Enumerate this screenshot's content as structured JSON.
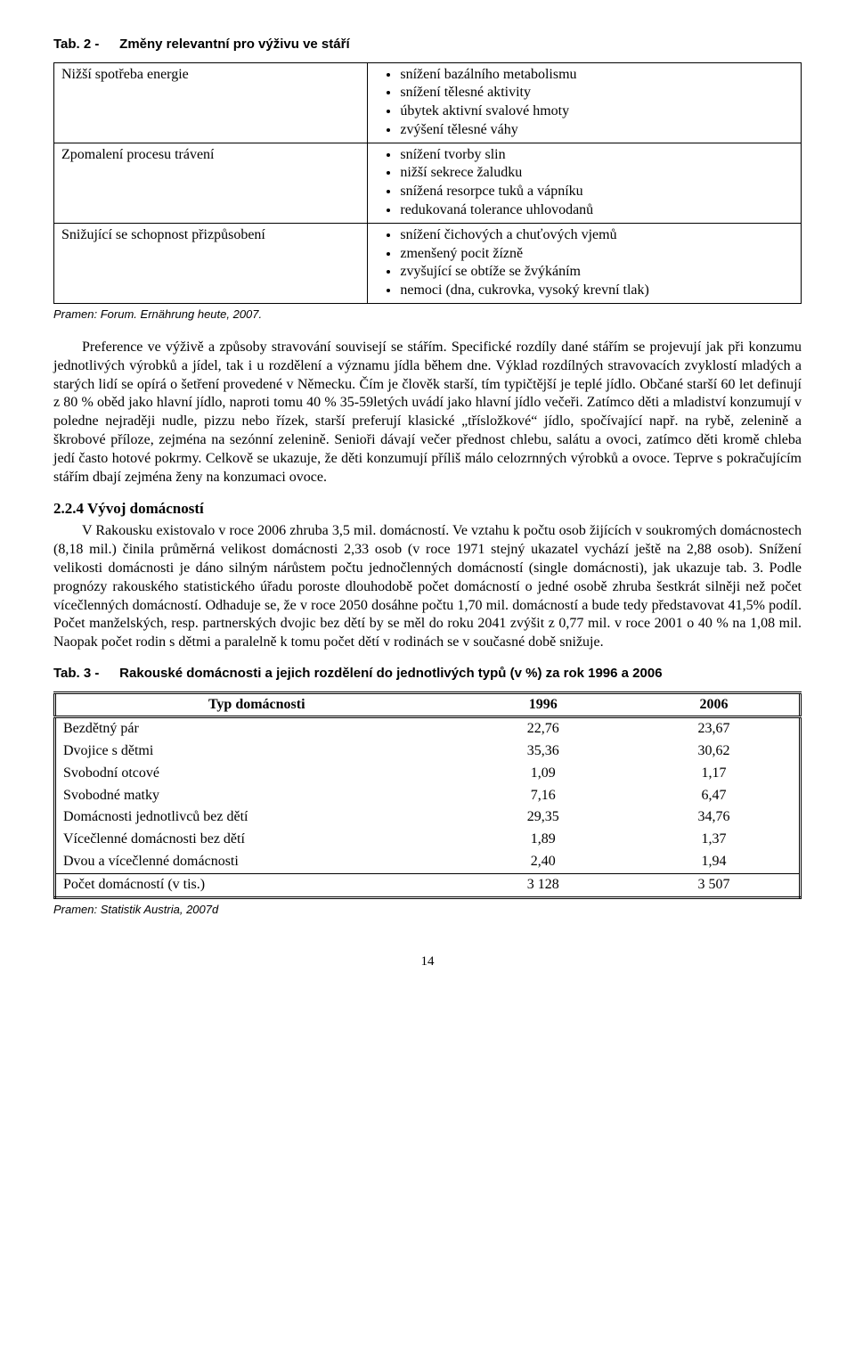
{
  "tab2": {
    "title_label": "Tab. 2 -",
    "title_text": "Změny relevantní pro výživu ve stáří",
    "rows": [
      {
        "left": "Nižší spotřeba energie",
        "items": [
          "snížení bazálního metabolismu",
          "snížení tělesné aktivity",
          "úbytek aktivní svalové hmoty",
          "zvýšení tělesné váhy"
        ]
      },
      {
        "left": "Zpomalení procesu trávení",
        "items": [
          "snížení tvorby slin",
          "nižší sekrece žaludku",
          "snížená resorpce tuků a vápníku",
          "redukovaná tolerance uhlovodanů"
        ]
      },
      {
        "left": "Snižující se schopnost přizpůsobení",
        "items": [
          "snížení čichových a chuťových vjemů",
          "zmenšený pocit žízně",
          "zvyšující se obtíže se žvýkáním",
          "nemoci (dna, cukrovka, vysoký krevní tlak)"
        ]
      }
    ],
    "source": "Pramen: Forum. Ernährung heute, 2007."
  },
  "para1": "Preference ve výživě a způsoby stravování souvisejí se stářím. Specifické rozdíly dané stářím se projevují jak při konzumu jednotlivých výrobků a jídel, tak i u rozdělení a významu jídla během dne. Výklad rozdílných stravovacích zvyklostí mladých a starých lidí se opírá o šetření provedené v Německu. Čím je člověk starší, tím typičtější je teplé jídlo. Občané starší 60 let definují z 80 % oběd jako hlavní jídlo, naproti tomu 40 % 35-59letých uvádí jako hlavní jídlo večeři. Zatímco děti a mladiství konzumují v poledne nejraději nudle, pizzu nebo řízek, starší preferují klasické „třísložkové“ jídlo, spočívající např. na rybě, zelenině a škrobové příloze, zejména na sezónní zelenině. Senioři dávají večer přednost chlebu, salátu a ovoci, zatímco děti kromě chleba jedí často hotové pokrmy. Celkově se ukazuje, že děti konzumují příliš málo celozrnných výrobků a ovoce. Teprve s pokračujícím stářím dbají zejména ženy na konzumaci ovoce.",
  "section": {
    "num": "2.2.4",
    "title": "Vývoj domácností"
  },
  "para2": "V Rakousku existovalo v roce 2006 zhruba 3,5 mil. domácností. Ve vztahu k počtu osob žijících v soukromých domácnostech (8,18 mil.) činila průměrná velikost domácnosti 2,33 osob (v roce 1971 stejný ukazatel vychází ještě na 2,88 osob). Snížení velikosti domácnosti je dáno silným nárůstem počtu jednočlenných domácností (single domácnosti), jak ukazuje tab. 3. Podle prognózy rakouského statistického úřadu poroste dlouhodobě počet domácností o jedné osobě zhruba šestkrát silněji než počet vícečlenných domácností. Odhaduje se, že v roce 2050 dosáhne počtu 1,70 mil. domácností a bude tedy představovat 41,5% podíl. Počet manželských, resp. partnerských dvojic bez dětí by se měl do roku 2041 zvýšit z 0,77 mil. v roce 2001 o 40 % na 1,08 mil. Naopak počet rodin s dětmi a paralelně k tomu počet dětí v rodinách se v současné době snižuje.",
  "tab3": {
    "title_label": "Tab. 3 -",
    "title_text": "Rakouské domácnosti a jejich rozdělení do jednotlivých typů (v %) za rok 1996 a 2006",
    "head": {
      "c0": "Typ domácnosti",
      "c1": "1996",
      "c2": "2006"
    },
    "rows": [
      {
        "label": "Bezdětný pár",
        "c1": "22,76",
        "c2": "23,67"
      },
      {
        "label": "Dvojice s dětmi",
        "c1": "35,36",
        "c2": "30,62"
      },
      {
        "label": "Svobodní otcové",
        "c1": "1,09",
        "c2": "1,17"
      },
      {
        "label": "Svobodné matky",
        "c1": "7,16",
        "c2": "6,47"
      },
      {
        "label": "Domácnosti jednotlivců bez dětí",
        "c1": "29,35",
        "c2": "34,76"
      },
      {
        "label": "Vícečlenné domácnosti bez dětí",
        "c1": "1,89",
        "c2": "1,37"
      },
      {
        "label": "Dvou a vícečlenné domácnosti",
        "c1": "2,40",
        "c2": "1,94"
      },
      {
        "label": "Počet domácností (v tis.)",
        "c1": "3 128",
        "c2": "3 507"
      }
    ],
    "source": "Pramen: Statistik Austria, 2007d"
  },
  "page_number": "14"
}
